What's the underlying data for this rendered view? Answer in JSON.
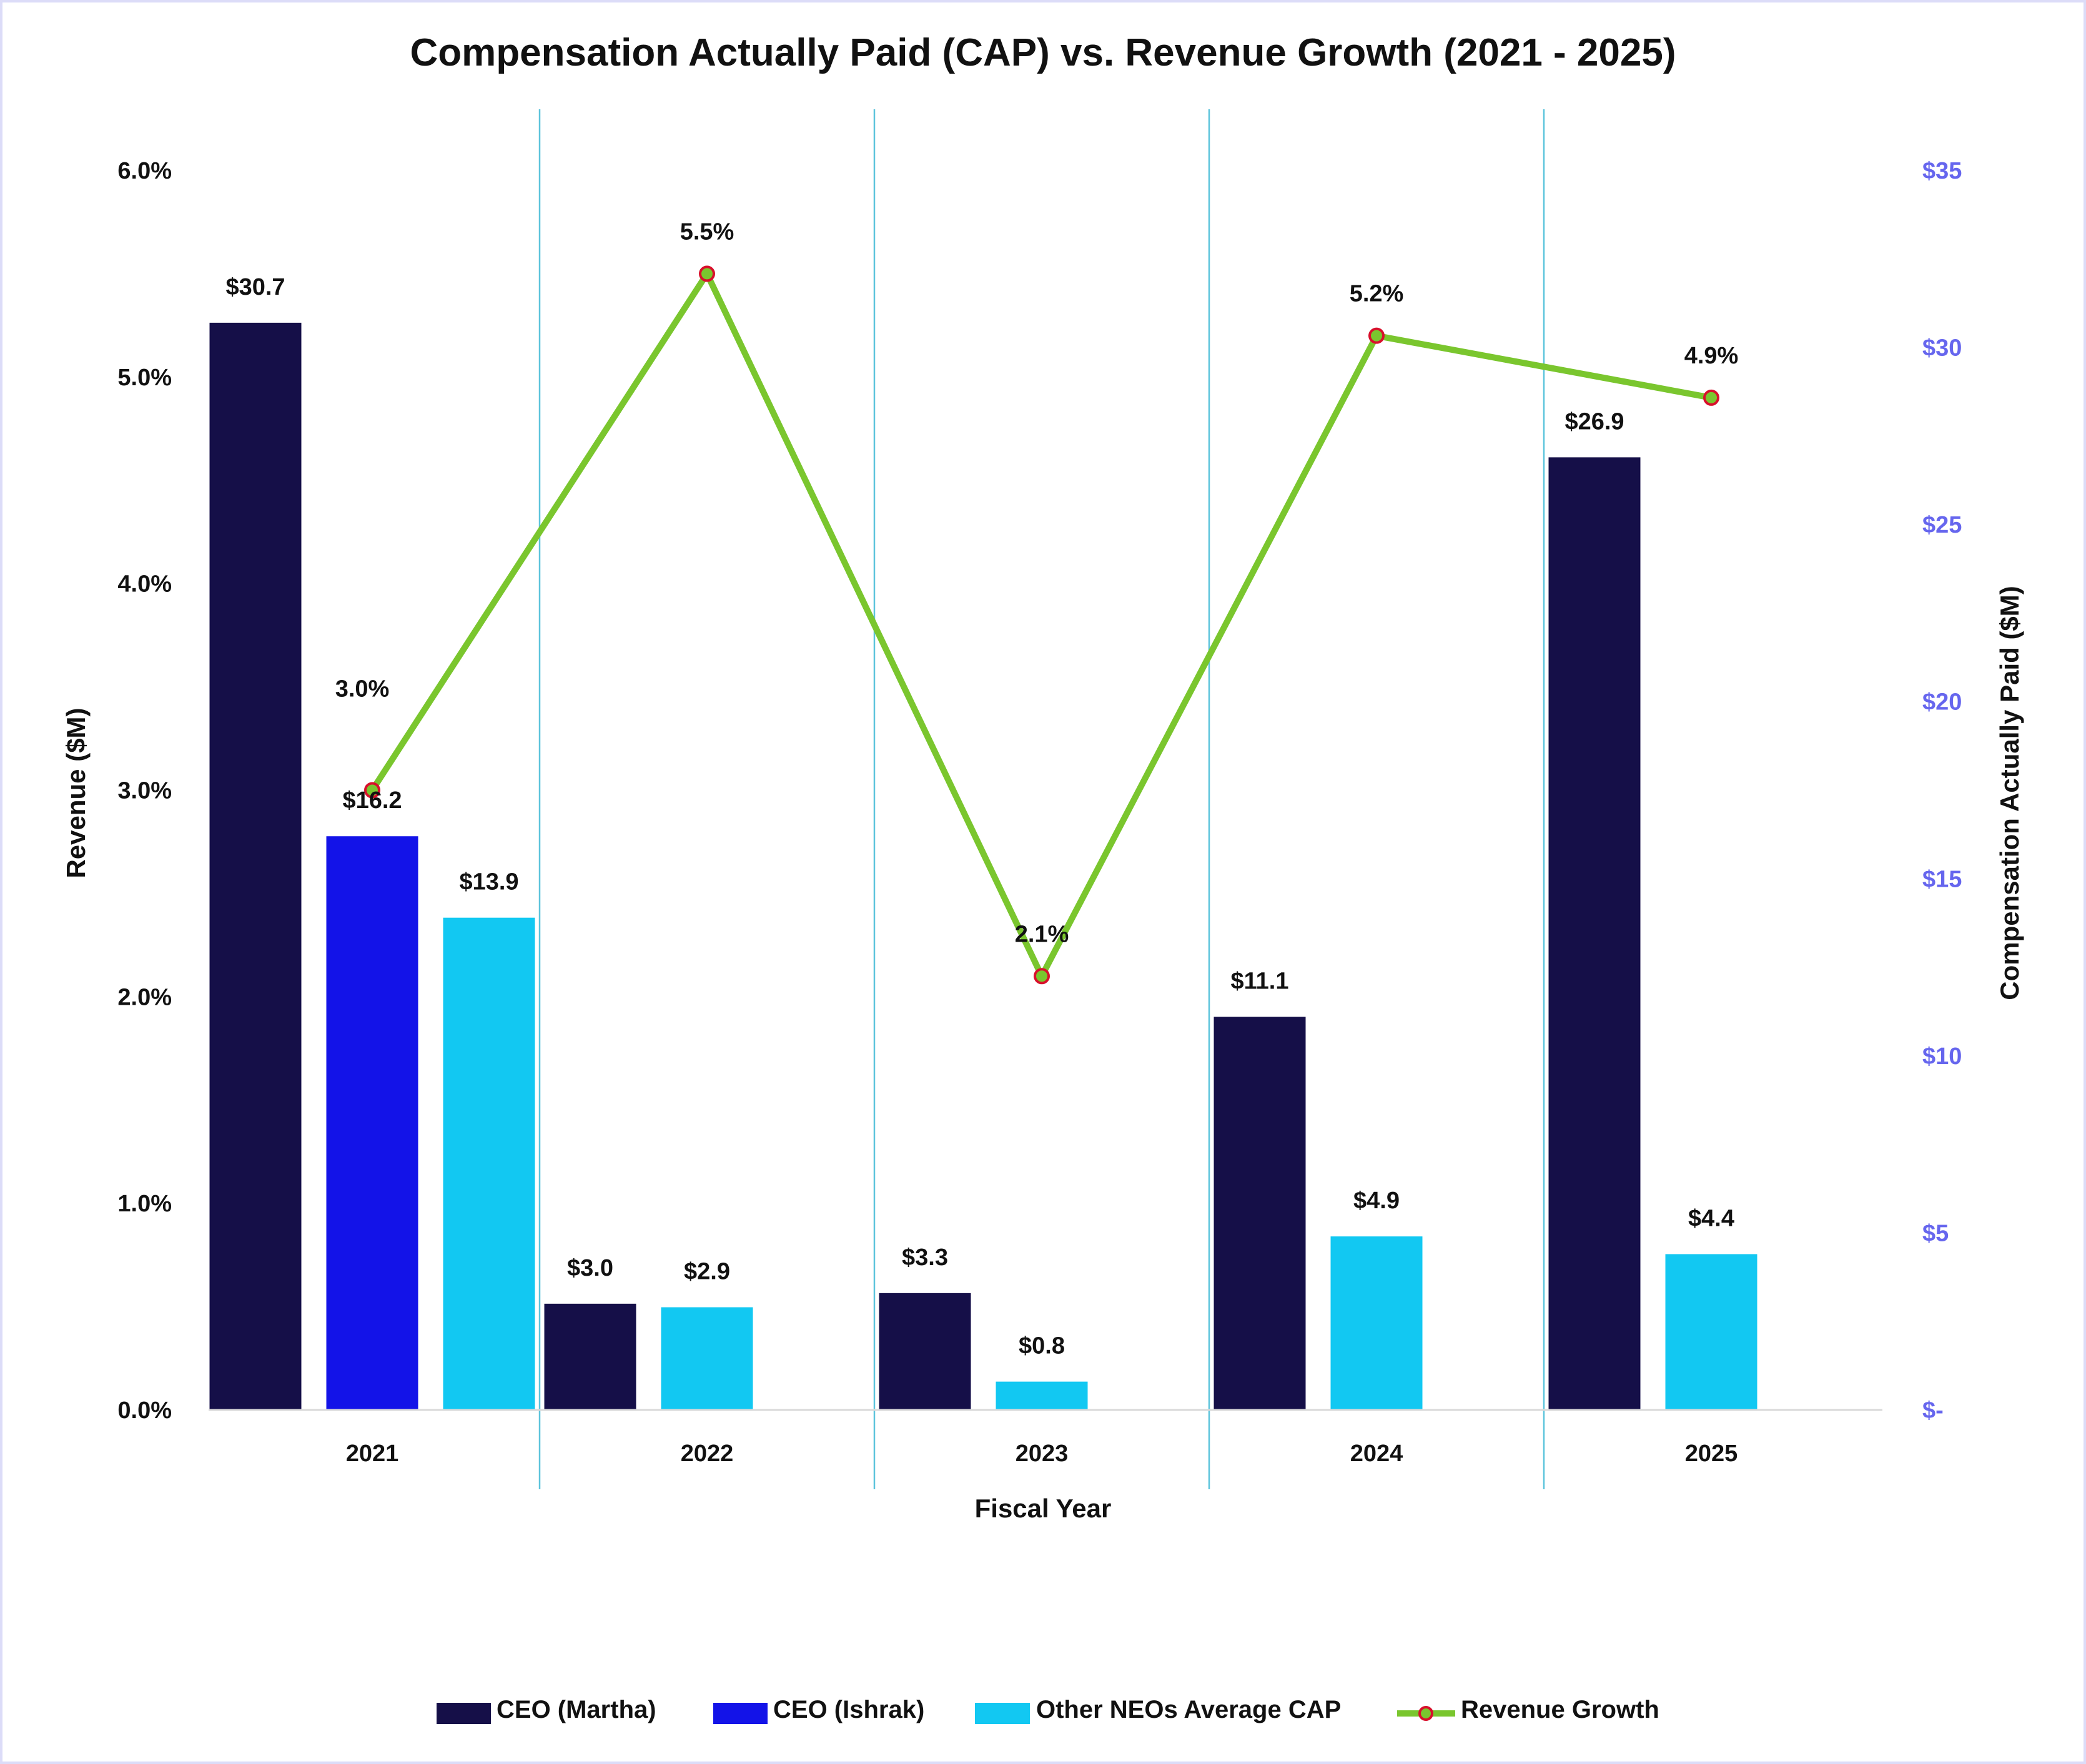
{
  "chart_data": {
    "type": "bar+line",
    "title": "Compensation Actually Paid (CAP) vs. Revenue Growth (2021 - 2025)",
    "xlabel": "Fiscal Year",
    "ylabel_left": "Revenue  ($M)",
    "ylabel_right": "Compensation Actually Paid ($M)",
    "categories": [
      "2021",
      "2022",
      "2023",
      "2024",
      "2025"
    ],
    "left_axis": {
      "ylim": [
        0,
        6
      ],
      "ticks": [
        "0.0%",
        "1.0%",
        "2.0%",
        "3.0%",
        "4.0%",
        "5.0%",
        "6.0%"
      ]
    },
    "right_axis": {
      "ylim": [
        0,
        35
      ],
      "ticks": [
        "$-",
        "$5",
        "$10",
        "$15",
        "$20",
        "$25",
        "$30",
        "$35"
      ],
      "color": "#6666ee"
    },
    "series": [
      {
        "name": "CEO (Martha)",
        "type": "bar",
        "axis": "right",
        "color": "#150f48",
        "values": [
          30.7,
          3.0,
          3.3,
          11.1,
          26.9
        ],
        "labels": [
          "$30.7",
          "$3.0",
          "$3.3",
          "$11.1",
          "$26.9"
        ]
      },
      {
        "name": "CEO (Ishrak)",
        "type": "bar",
        "axis": "right",
        "color": "#1313e8",
        "values": [
          16.2,
          null,
          null,
          null,
          null
        ],
        "labels": [
          "$16.2",
          "",
          "",
          "",
          ""
        ]
      },
      {
        "name": "Other NEOs Average CAP",
        "type": "bar",
        "axis": "right",
        "color": "#12c8f2",
        "values": [
          13.9,
          2.9,
          0.8,
          4.9,
          4.4
        ],
        "labels": [
          "$13.9",
          "$2.9",
          "$0.8",
          "$4.9",
          "$4.4"
        ]
      },
      {
        "name": "Revenue Growth",
        "type": "line",
        "axis": "left",
        "color": "#7ac62e",
        "marker_edge": "#d8102c",
        "values": [
          3.0,
          5.5,
          2.1,
          5.2,
          4.9
        ],
        "labels": [
          "3.0%",
          "5.5%",
          "2.1%",
          "5.2%",
          "4.9%"
        ]
      }
    ],
    "legend_position": "bottom",
    "grid": false
  }
}
